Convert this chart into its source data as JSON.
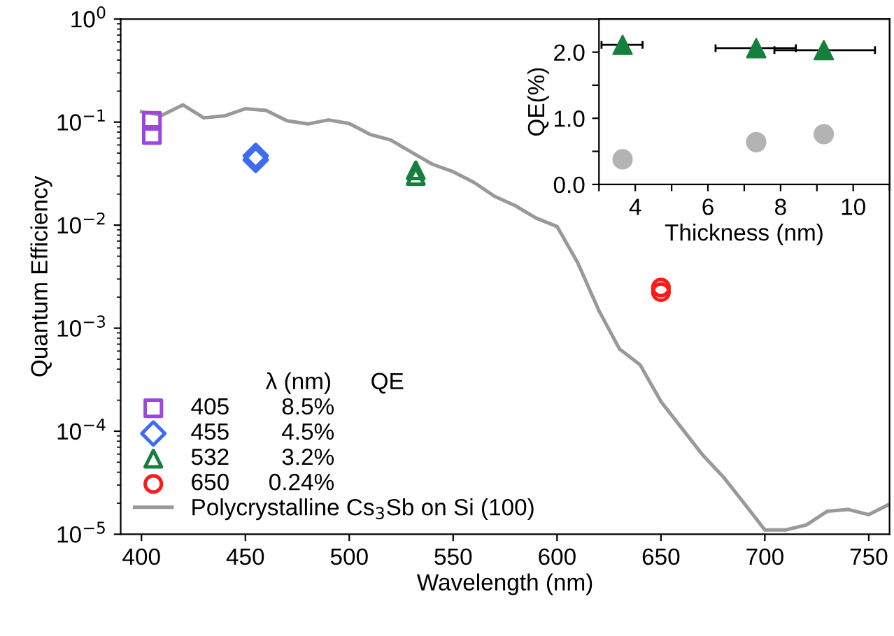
{
  "chart_data": [
    {
      "type": "line",
      "xlabel": "Wavelength (nm)",
      "ylabel": "Quantum Efficiency",
      "log": "y",
      "xlim": [
        390,
        760
      ],
      "ylim": [
        1e-05,
        1
      ],
      "xticks": [
        400,
        450,
        500,
        550,
        600,
        650,
        700,
        750
      ],
      "yticks": [
        {
          "value": 1e-05,
          "label": "10$^{−5}$"
        },
        {
          "value": 0.0001,
          "label": "10$^{−4}$"
        },
        {
          "value": 0.001,
          "label": "10$^{−3}$"
        },
        {
          "value": 0.01,
          "label": "10$^{−2}$"
        },
        {
          "value": 0.1,
          "label": "10$^{−1}$"
        },
        {
          "value": 1,
          "label": "10$^{0}$"
        }
      ],
      "legend": "bottom left",
      "legend_title": "λ (nm)      QE",
      "series": [
        {
          "name": "405        8.5%",
          "type": "scatter",
          "marker": "square",
          "color": "#9b46e0",
          "x": [
            405,
            405
          ],
          "values": [
            0.103,
            0.075
          ]
        },
        {
          "name": "455        4.5%",
          "type": "scatter",
          "marker": "diamond",
          "color": "#3d6cf0",
          "x": [
            455,
            455
          ],
          "values": [
            0.047,
            0.043
          ]
        },
        {
          "name": "532        3.2%",
          "type": "scatter",
          "marker": "triangle",
          "color": "#15803d",
          "x": [
            532,
            532
          ],
          "values": [
            0.034,
            0.03
          ]
        },
        {
          "name": "650      0.24%",
          "type": "scatter",
          "marker": "circle",
          "color": "#ff1a1a",
          "x": [
            650,
            650
          ],
          "values": [
            0.00248,
            0.00224
          ]
        },
        {
          "name": "Polycrystalline Cs$_{3}$Sb on Si (100)",
          "type": "line",
          "color": "#999999",
          "x": [
            400,
            410,
            420,
            430,
            440,
            450,
            460,
            470,
            480,
            490,
            500,
            510,
            520,
            530,
            540,
            550,
            560,
            570,
            580,
            590,
            600,
            610,
            620,
            630,
            640,
            650,
            660,
            670,
            680,
            690,
            700,
            710,
            720,
            730,
            740,
            750,
            760
          ],
          "values": [
            0.126,
            0.117,
            0.147,
            0.11,
            0.115,
            0.135,
            0.13,
            0.103,
            0.096,
            0.105,
            0.097,
            0.076,
            0.067,
            0.051,
            0.039,
            0.033,
            0.026,
            0.019,
            0.0154,
            0.0117,
            0.0097,
            0.0043,
            0.0015,
            0.00063,
            0.00044,
            0.000194,
            0.000107,
            5.9e-05,
            3.6e-05,
            2e-05,
            1.1e-05,
            1.1e-05,
            1.23e-05,
            1.67e-05,
            1.74e-05,
            1.55e-05,
            1.96e-05
          ]
        }
      ]
    },
    {
      "type": "scatter",
      "xlabel": "Thickness (nm)",
      "ylabel": "QE(%)",
      "xlim": [
        3,
        11
      ],
      "ylim": [
        0,
        2.5
      ],
      "xticks": [
        {
          "value": 3,
          "label": null
        },
        4,
        {
          "value": 5,
          "label": null
        },
        6,
        {
          "value": 7,
          "label": null
        },
        8,
        {
          "value": 9,
          "label": null
        },
        10,
        {
          "value": 11,
          "label": null
        }
      ],
      "yticks": [
        {
          "value": 0,
          "label": "0.0"
        },
        {
          "value": 0.5,
          "label": null
        },
        {
          "value": 1,
          "label": "1.0"
        },
        {
          "value": 1.5,
          "label": null
        },
        {
          "value": 2,
          "label": "2.0"
        }
      ],
      "series": [
        {
          "marker": "triangle",
          "color": "#15803d",
          "x": [
            3.65,
            7.33,
            9.19
          ],
          "values": [
            2.11,
            2.06,
            2.03
          ],
          "xerrors": [
            [
              3.07,
              4.2
            ],
            [
              6.21,
              8.42
            ],
            [
              7.83,
              10.6
            ]
          ]
        },
        {
          "marker": "circle",
          "color": "#b3b3b3",
          "x": [
            3.65,
            7.33,
            9.19
          ],
          "values": [
            0.38,
            0.64,
            0.76
          ]
        }
      ]
    }
  ]
}
